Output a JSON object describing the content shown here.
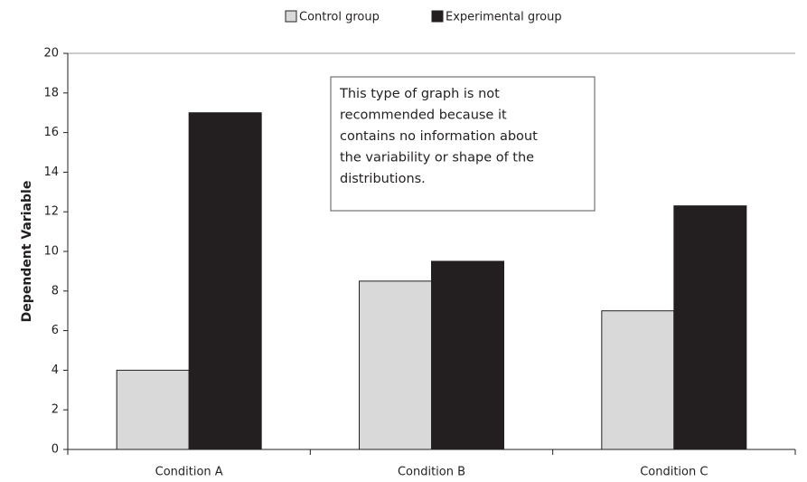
{
  "chart_data": {
    "type": "bar",
    "ylabel": "Dependent Variable",
    "categories": [
      "Condition A",
      "Condition B",
      "Condition C"
    ],
    "series": [
      {
        "name": "Control group",
        "color": "#d9d9d9",
        "values": [
          4,
          8.5,
          7
        ]
      },
      {
        "name": "Experimental group",
        "color": "#231f20",
        "values": [
          17,
          9.5,
          12.3
        ]
      }
    ],
    "annotation": [
      "This type of graph is not",
      "recommended because it",
      "contains no information about",
      "the variability or shape of the",
      "distributions."
    ],
    "ylim": [
      0,
      20
    ],
    "yticks": [
      0,
      2,
      4,
      6,
      8,
      10,
      12,
      14,
      16,
      18,
      20
    ],
    "legend": "top"
  }
}
